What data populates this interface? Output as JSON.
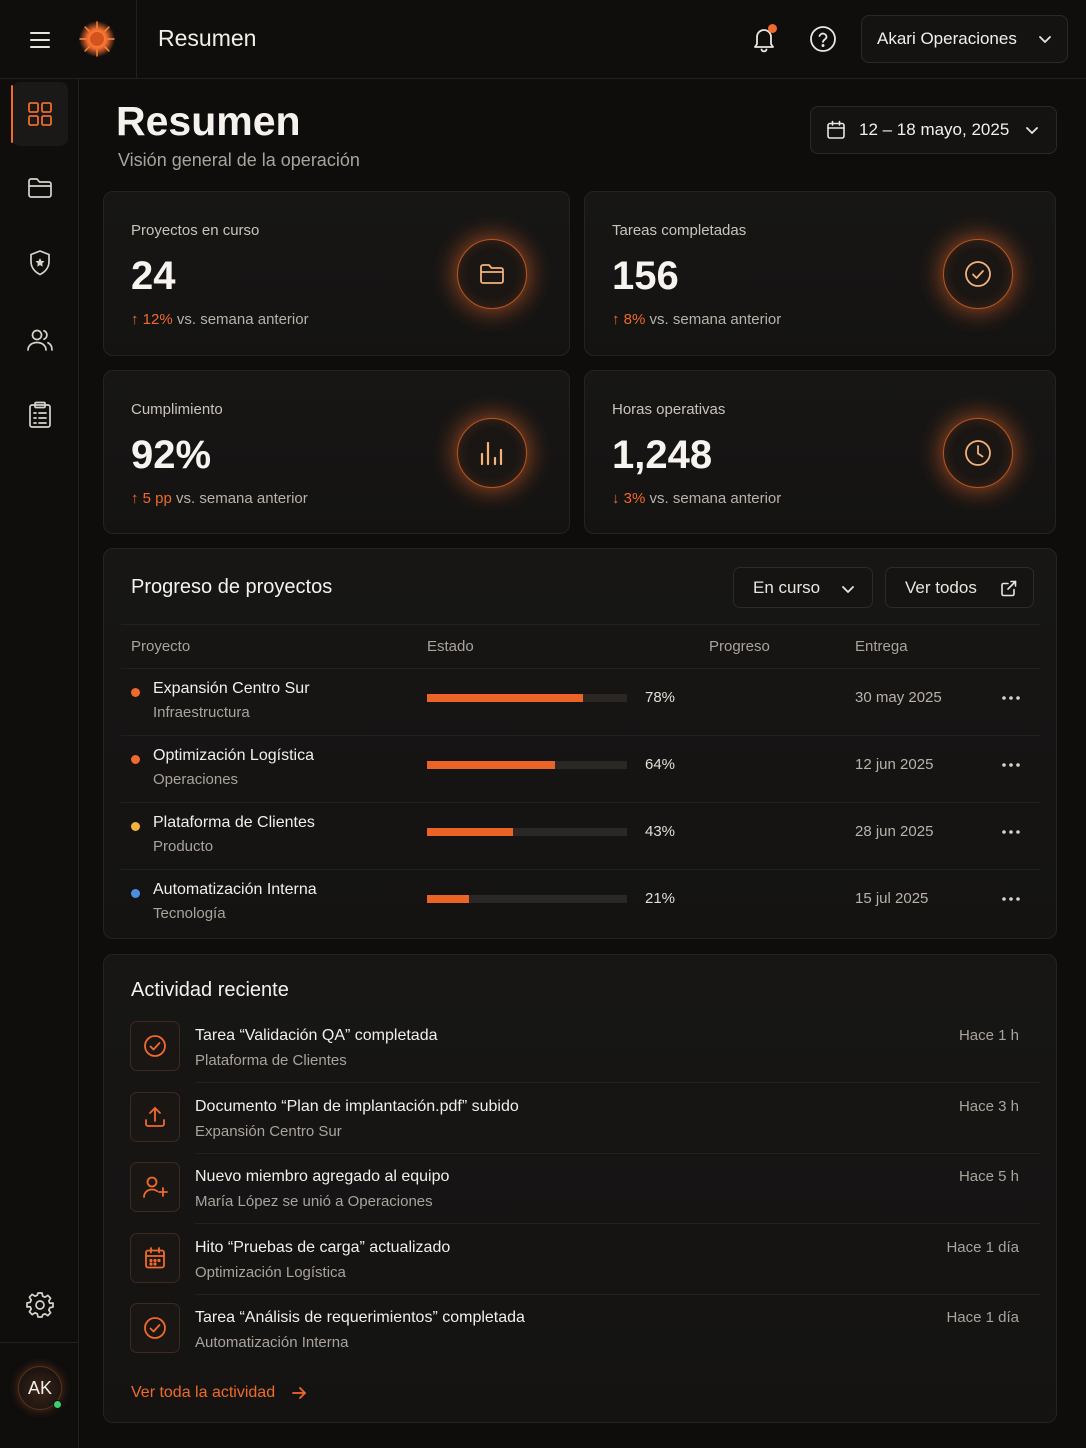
{
  "topbar": {
    "title": "Resumen",
    "account_label": "Akari Operaciones",
    "icons": [
      "menu-icon",
      "logo-icon",
      "bell-icon",
      "help-icon",
      "chevron-down-icon"
    ]
  },
  "sidebar": {
    "items": [
      {
        "icon": "dashboard-icon",
        "active": true
      },
      {
        "icon": "folder-icon",
        "active": false
      },
      {
        "icon": "shield-icon",
        "active": false
      },
      {
        "icon": "users-icon",
        "active": false
      },
      {
        "icon": "clipboard-icon",
        "active": false
      }
    ],
    "settings_icon": "gear-icon",
    "avatar_initials": "AK"
  },
  "header": {
    "title": "Resumen",
    "subtitle": "Visión general de la operación",
    "date_range": "12 – 18 mayo, 2025"
  },
  "stats": [
    {
      "label": "Proyectos en curso",
      "value": "24",
      "delta_arrow": "↑",
      "delta_value": "12%",
      "delta_text": "vs. semana anterior",
      "icon": "folder-icon"
    },
    {
      "label": "Tareas completadas",
      "value": "156",
      "delta_arrow": "↑",
      "delta_value": "8%",
      "delta_text": "vs. semana anterior",
      "icon": "check-circle-icon"
    },
    {
      "label": "Cumplimiento",
      "value": "92%",
      "delta_arrow": "↑",
      "delta_value": "5 pp",
      "delta_text": "vs. semana anterior",
      "icon": "bar-chart-icon"
    },
    {
      "label": "Horas operativas",
      "value": "1,248",
      "delta_arrow": "↓",
      "delta_value": "3%",
      "delta_text": "vs. semana anterior",
      "icon": "clock-icon"
    }
  ],
  "progress": {
    "title": "Progreso de proyectos",
    "filter_label": "En curso",
    "view_all_label": "Ver todos",
    "columns": [
      "Proyecto",
      "Estado",
      "Progreso",
      "Entrega"
    ],
    "rows": [
      {
        "name": "Expansión Centro Sur",
        "category": "Infraestructura",
        "progress": 78,
        "progress_label": "78%",
        "due": "30 may 2025",
        "dot_color": "#ef6a2c"
      },
      {
        "name": "Optimización Logística",
        "category": "Operaciones",
        "progress": 64,
        "progress_label": "64%",
        "due": "12 jun 2025",
        "dot_color": "#ef6a2c"
      },
      {
        "name": "Plataforma de Clientes",
        "category": "Producto",
        "progress": 43,
        "progress_label": "43%",
        "due": "28 jun 2025",
        "dot_color": "#f2b33d"
      },
      {
        "name": "Automatización Interna",
        "category": "Tecnología",
        "progress": 21,
        "progress_label": "21%",
        "due": "15 jul 2025",
        "dot_color": "#4a8fe0"
      }
    ]
  },
  "activity": {
    "title": "Actividad reciente",
    "items": [
      {
        "icon": "check-circle-icon",
        "title": "Tarea “Validación QA” completada",
        "subtitle": "Plataforma de Clientes",
        "time": "Hace 1 h"
      },
      {
        "icon": "upload-icon",
        "title": "Documento “Plan de implantación.pdf” subido",
        "subtitle": "Expansión Centro Sur",
        "time": "Hace 3 h"
      },
      {
        "icon": "user-plus-icon",
        "title": "Nuevo miembro agregado al equipo",
        "subtitle": "María López se unió a Operaciones",
        "time": "Hace 5 h"
      },
      {
        "icon": "calendar-icon",
        "title": "Hito “Pruebas de carga” actualizado",
        "subtitle": "Optimización Logística",
        "time": "Hace 1 día"
      },
      {
        "icon": "check-circle-icon",
        "title": "Tarea “Análisis de requerimientos” completada",
        "subtitle": "Automatización Interna",
        "time": "Hace 1 día"
      }
    ],
    "see_all_label": "Ver toda la actividad"
  },
  "colors": {
    "accent": "#ef6a2c",
    "background": "#0e0d0c",
    "card": "#161514"
  }
}
